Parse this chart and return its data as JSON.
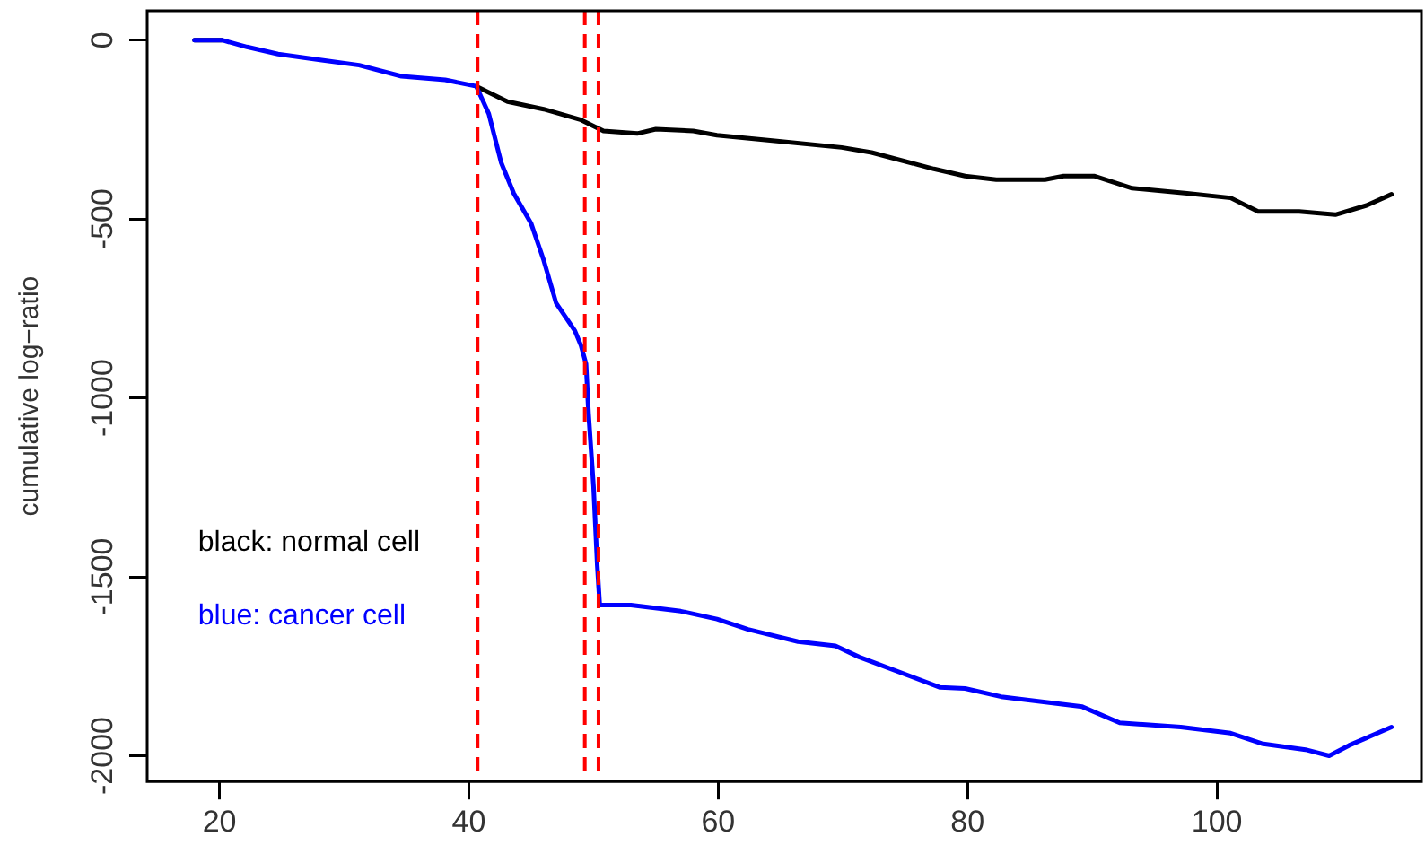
{
  "chart_data": {
    "type": "line",
    "ylabel": "cumulative log−ratio",
    "xlim": [
      14.2,
      116.4
    ],
    "ylim": [
      -2072,
      82
    ],
    "xticks": [
      20,
      40,
      60,
      80,
      100
    ],
    "yticks": [
      0,
      -500,
      -1000,
      -1500,
      -2000
    ],
    "grid": false,
    "legend": "left",
    "marker": "none",
    "line_style": "solid",
    "series": [
      {
        "name": "black: normal cell",
        "color": "#000000",
        "x": [
          18.0,
          20.2,
          22.2,
          24.7,
          28.2,
          31.2,
          34.6,
          38.1,
          40.6,
          43.1,
          46.0,
          49.0,
          50.8,
          53.5,
          55.0,
          58.0,
          59.9,
          64.9,
          69.9,
          72.3,
          77.3,
          79.8,
          82.3,
          86.2,
          87.7,
          90.2,
          93.2,
          97.6,
          101.1,
          103.3,
          106.6,
          109.5,
          112.0,
          114.0
        ],
        "values": [
          0,
          0,
          null,
          null,
          null,
          null,
          null,
          null,
          -129,
          -172,
          -193,
          -223,
          -254,
          -261,
          -249,
          -254,
          -266,
          -283,
          -300,
          -314,
          -360,
          -380,
          -390,
          -390,
          -380,
          -380,
          -414,
          -428,
          -441,
          -479,
          -479,
          -488,
          -462,
          -431
        ]
      },
      {
        "name": "blue: cancer cell",
        "color": "#0000ff",
        "x": [
          18.0,
          20.2,
          22.2,
          24.7,
          28.2,
          31.2,
          34.6,
          38.1,
          40.6,
          41.6,
          42.6,
          43.6,
          45.0,
          46.0,
          47.0,
          48.5,
          49.0,
          49.4,
          49.6,
          50.0,
          50.3,
          50.5,
          53.0,
          57.0,
          59.9,
          62.4,
          66.4,
          69.4,
          71.3,
          77.8,
          79.8,
          82.7,
          89.2,
          92.2,
          97.1,
          101.1,
          103.6,
          107.1,
          109.0,
          110.6,
          114.0
        ],
        "values": [
          0,
          0,
          -19,
          -39,
          -56,
          -70,
          -101,
          -111,
          -129,
          -206,
          -343,
          -428,
          -513,
          -615,
          -735,
          -812,
          -854,
          -905,
          -1042,
          -1247,
          -1468,
          -1579,
          -1579,
          -1596,
          -1618,
          -1647,
          -1681,
          -1693,
          -1724,
          -1809,
          -1812,
          -1835,
          -1863,
          -1908,
          -1920,
          -1937,
          -1966,
          -1983,
          -2000,
          -1971,
          -1920
        ]
      }
    ],
    "ref_lines": [
      {
        "axis": "x",
        "value": 40.7,
        "color": "#ff0000",
        "line_style": "dashed"
      },
      {
        "axis": "x",
        "value": 49.3,
        "color": "#ff0000",
        "line_style": "dashed"
      },
      {
        "axis": "x",
        "value": 50.4,
        "color": "#ff0000",
        "line_style": "dashed"
      }
    ]
  }
}
